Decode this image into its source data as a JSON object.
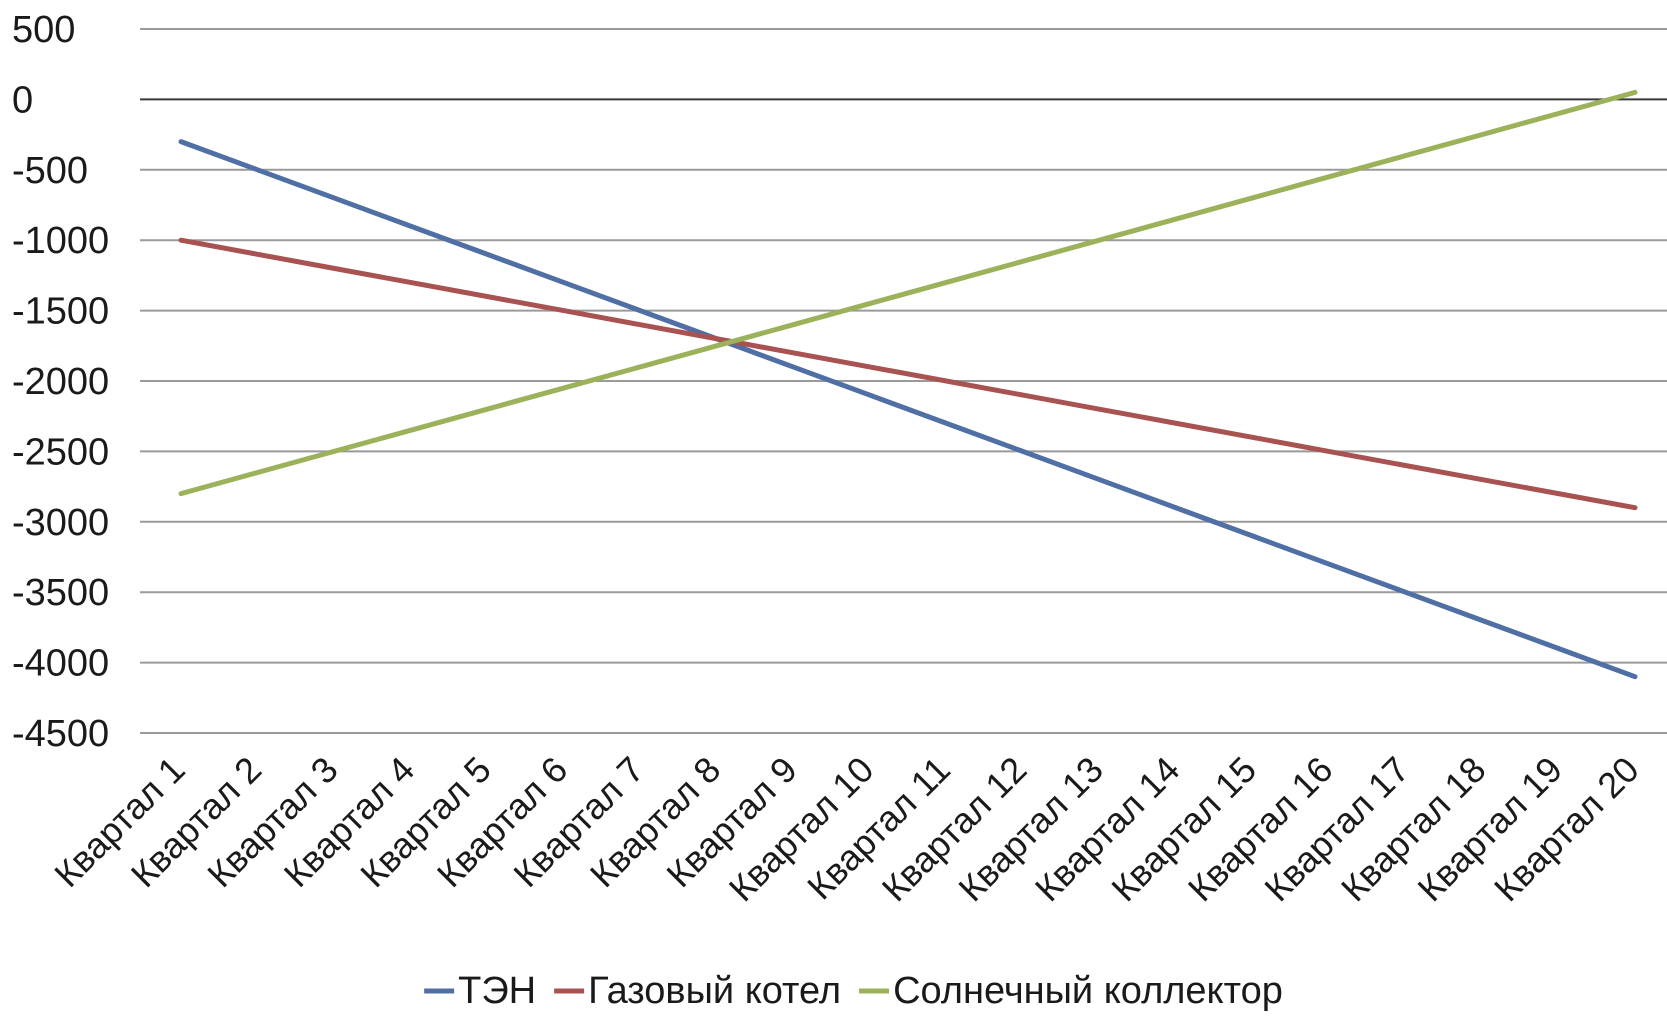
{
  "chart_data": {
    "type": "line",
    "title": "",
    "xlabel": "",
    "ylabel": "",
    "ylim": [
      -4500,
      500
    ],
    "yticks": [
      500,
      0,
      -500,
      -1000,
      -1500,
      -2000,
      -2500,
      -3000,
      -3500,
      -4000,
      -4500
    ],
    "yticks_text": [
      "500",
      "0",
      "-500",
      "-1000",
      "-1500",
      "-2000",
      "-2500",
      "-3000",
      "-3500",
      "-4000",
      "-4500"
    ],
    "grid": true,
    "legend_position": "bottom",
    "categories": [
      "Квартал 1",
      "Квартал 2",
      "Квартал 3",
      "Квартал 4",
      "Квартал 5",
      "Квартал 6",
      "Квартал 7",
      "Квартал 8",
      "Квартал 9",
      "Квартал 10",
      "Квартал 11",
      "Квартал 12",
      "Квартал 13",
      "Квартал 14",
      "Квартал 15",
      "Квартал 16",
      "Квартал 17",
      "Квартал 18",
      "Квартал 19",
      "Квартал 20"
    ],
    "series": [
      {
        "name": "ТЭН",
        "color": "#4F6FA5",
        "values": [
          -300,
          -500,
          -700,
          -900,
          -1100,
          -1300,
          -1500,
          -1700,
          -1900,
          -2100,
          -2300,
          -2500,
          -2700,
          -2900,
          -3100,
          -3300,
          -3500,
          -3700,
          -3900,
          -4100
        ]
      },
      {
        "name": "Газовый котел",
        "color": "#A85352",
        "values": [
          -1000,
          -1100,
          -1200,
          -1300,
          -1400,
          -1500,
          -1600,
          -1700,
          -1800,
          -1900,
          -2000,
          -2100,
          -2200,
          -2300,
          -2400,
          -2500,
          -2600,
          -2700,
          -2800,
          -2900
        ]
      },
      {
        "name": "Солнечный коллектор",
        "color": "#9BB25A",
        "values": [
          -2800,
          -2650,
          -2500,
          -2350,
          -2200,
          -2050,
          -1900,
          -1750,
          -1600,
          -1450,
          -1300,
          -1150,
          -1000,
          -850,
          -700,
          -550,
          -400,
          -250,
          -100,
          50
        ]
      }
    ]
  }
}
